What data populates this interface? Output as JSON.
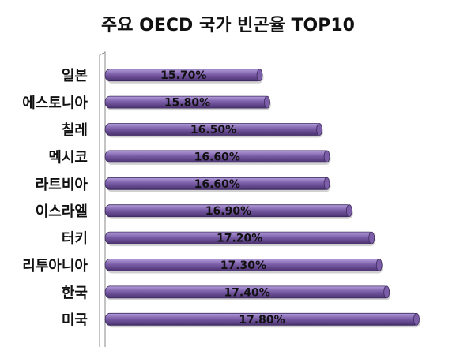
{
  "chart_data": {
    "type": "bar",
    "orientation": "horizontal",
    "title": "주요 OECD 국가 빈곤율 TOP10",
    "categories": [
      "일본",
      "에스토니아",
      "칠레",
      "멕시코",
      "라트비아",
      "이스라엘",
      "터키",
      "리투아니아",
      "한국",
      "미국"
    ],
    "values": [
      15.7,
      15.8,
      16.5,
      16.6,
      16.6,
      16.9,
      17.2,
      17.3,
      17.4,
      17.8
    ],
    "value_labels": [
      "15.70%",
      "15.80%",
      "16.50%",
      "16.60%",
      "16.60%",
      "16.90%",
      "17.20%",
      "17.30%",
      "17.40%",
      "17.80%"
    ],
    "unit": "%",
    "xlim": [
      13.6,
      17.8
    ],
    "grid": false,
    "legend": "none",
    "bar_color": "#7b5ea7",
    "bar_color_light": "#b39ddb",
    "bar_color_dark": "#4a3270"
  }
}
